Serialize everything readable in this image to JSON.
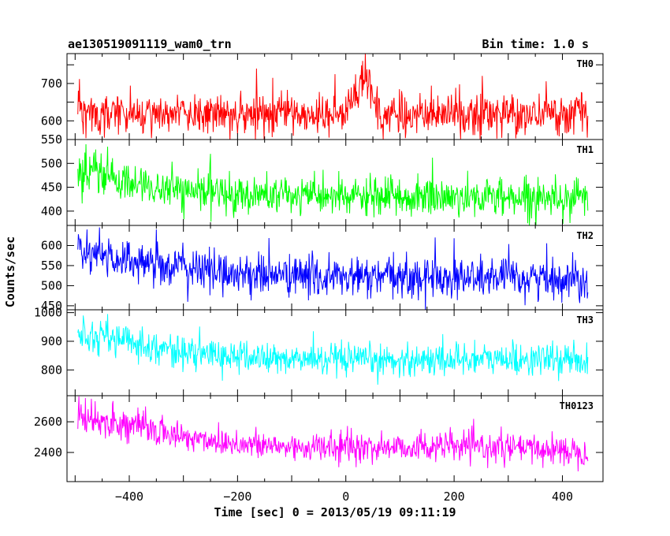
{
  "chart_data": {
    "type": "line",
    "title": "ae130519091119_wam0_trn",
    "bin_time": "Bin time: 1.0 s",
    "xlabel": "Time [sec] 0 = 2013/05/19 09:11:19",
    "ylabel": "Counts/sec",
    "xlim": [
      -515,
      475
    ],
    "x_range": [
      -495,
      447
    ],
    "bin_seconds": 1,
    "x_ticks": [
      -400,
      -200,
      0,
      200,
      400
    ],
    "grid": false,
    "panels": [
      {
        "name": "TH0",
        "color": "#ff0000",
        "ylim": [
          550,
          780
        ],
        "y_ticks": [
          550,
          600,
          650,
          700,
          750
        ],
        "y_tick_labels": [
          "550",
          "600",
          "",
          "700",
          ""
        ],
        "baseline": [
          [
            -495,
            622
          ],
          [
            -300,
            618
          ],
          [
            0,
            616
          ],
          [
            100,
            616
          ],
          [
            300,
            618
          ],
          [
            447,
            620
          ]
        ],
        "noise_sd": 27,
        "spikes": [
          [
            -492,
            712
          ],
          [
            -165,
            740
          ],
          [
            -135,
            715
          ],
          [
            -20,
            725
          ]
        ],
        "bursts": [
          {
            "start": 0,
            "end": 25,
            "peak": 660
          },
          {
            "start": 25,
            "end": 48,
            "peak": 720
          },
          {
            "start": 48,
            "end": 60,
            "peak": 645
          }
        ]
      },
      {
        "name": "TH1",
        "color": "#00ff00",
        "ylim": [
          370,
          550
        ],
        "y_ticks": [
          400,
          450,
          500
        ],
        "y_tick_labels": [
          "400",
          "450",
          "500"
        ],
        "baseline": [
          [
            -495,
            485
          ],
          [
            -400,
            458
          ],
          [
            -300,
            440
          ],
          [
            -100,
            432
          ],
          [
            100,
            428
          ],
          [
            300,
            430
          ],
          [
            447,
            430
          ]
        ],
        "noise_sd": 20,
        "spikes": [
          [
            -480,
            540
          ],
          [
            -440,
            535
          ],
          [
            -250,
            520
          ],
          [
            160,
            512
          ]
        ],
        "bursts": []
      },
      {
        "name": "TH2",
        "color": "#0000ff",
        "ylim": [
          440,
          650
        ],
        "y_ticks": [
          450,
          500,
          550,
          600
        ],
        "y_tick_labels": [
          "450",
          "500",
          "550",
          "600"
        ],
        "baseline": [
          [
            -495,
            578
          ],
          [
            -400,
            565
          ],
          [
            -300,
            545
          ],
          [
            -200,
            530
          ],
          [
            0,
            520
          ],
          [
            200,
            520
          ],
          [
            447,
            518
          ]
        ],
        "noise_sd": 26,
        "spikes": [
          [
            -478,
            640
          ],
          [
            -455,
            645
          ],
          [
            -350,
            640
          ],
          [
            165,
            620
          ],
          [
            200,
            618
          ]
        ],
        "bursts": []
      },
      {
        "name": "TH3",
        "color": "#00ffff",
        "ylim": [
          710,
          1010
        ],
        "y_ticks": [
          800,
          900,
          1000
        ],
        "y_tick_labels": [
          "800",
          "900",
          "1000"
        ],
        "baseline": [
          [
            -495,
            930
          ],
          [
            -400,
            900
          ],
          [
            -300,
            860
          ],
          [
            -150,
            840
          ],
          [
            0,
            830
          ],
          [
            200,
            838
          ],
          [
            447,
            835
          ]
        ],
        "noise_sd": 28,
        "spikes": [
          [
            -485,
            990
          ],
          [
            -440,
            995
          ],
          [
            -60,
            935
          ],
          [
            238,
            905
          ]
        ],
        "bursts": []
      },
      {
        "name": "TH0123",
        "color": "#ff00ff",
        "ylim": [
          2210,
          2770
        ],
        "y_ticks": [
          2400,
          2600
        ],
        "y_tick_labels": [
          "2400",
          "2600"
        ],
        "baseline": [
          [
            -495,
            2630
          ],
          [
            -400,
            2580
          ],
          [
            -300,
            2500
          ],
          [
            -150,
            2440
          ],
          [
            0,
            2430
          ],
          [
            200,
            2440
          ],
          [
            447,
            2410
          ]
        ],
        "noise_sd": 48,
        "spikes": [
          [
            -470,
            2750
          ],
          [
            -430,
            2735
          ],
          [
            -370,
            2700
          ],
          [
            10,
            2560
          ]
        ],
        "bursts": []
      }
    ]
  }
}
